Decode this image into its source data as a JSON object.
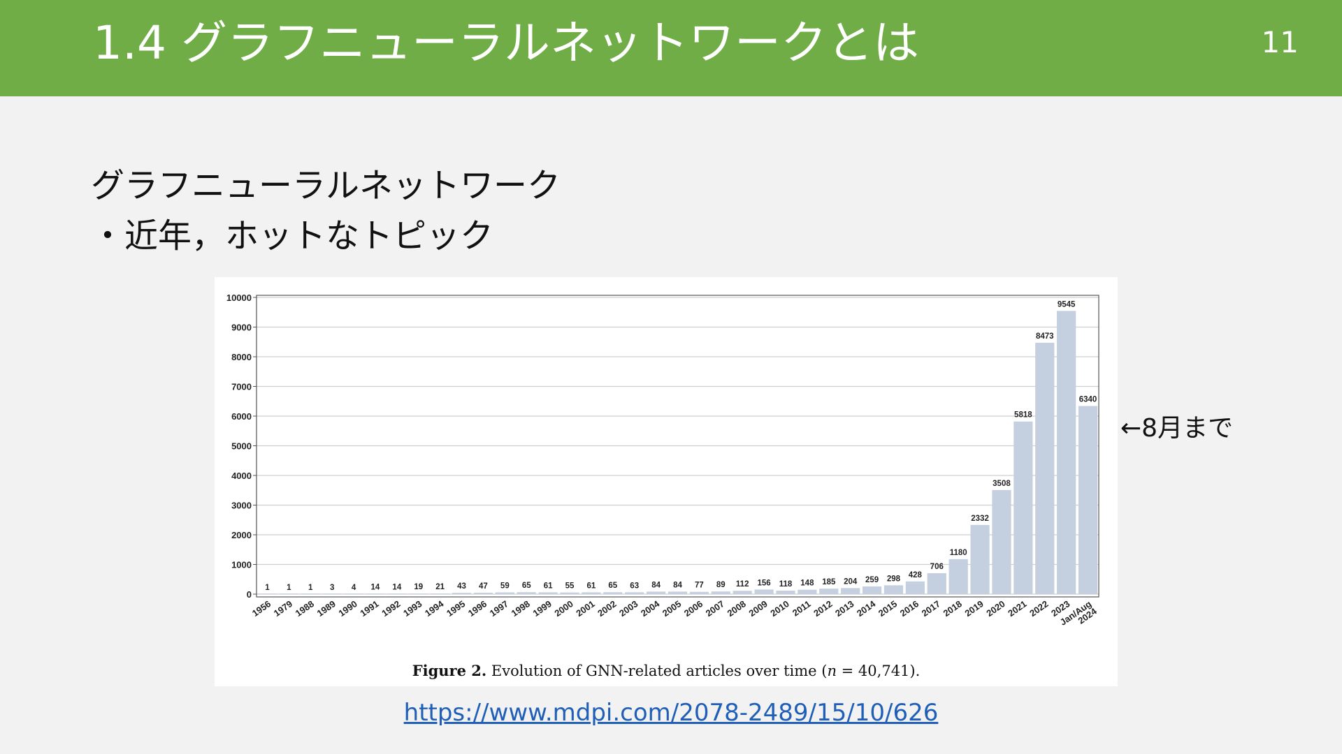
{
  "slide": {
    "title": "1.4 グラフニューラルネットワークとは",
    "page_number": "11",
    "heading": "グラフニューラルネットワーク",
    "bullet": "・近年，ホットなトピック",
    "note": "←8月まで",
    "link": "https://www.mdpi.com/2078-2489/15/10/626"
  },
  "colors": {
    "header": "#70ad47",
    "bar": "#c4d0df",
    "link": "#1f5fb8"
  },
  "chart_data": {
    "type": "bar",
    "categories": [
      "1956",
      "1979",
      "1988",
      "1989",
      "1990",
      "1991",
      "1992",
      "1993",
      "1994",
      "1995",
      "1996",
      "1997",
      "1998",
      "1999",
      "2000",
      "2001",
      "2002",
      "2003",
      "2004",
      "2005",
      "2006",
      "2007",
      "2008",
      "2009",
      "2010",
      "2011",
      "2012",
      "2013",
      "2014",
      "2015",
      "2016",
      "2017",
      "2018",
      "2019",
      "2020",
      "2021",
      "2022",
      "2023",
      "Jan/Aug 2024"
    ],
    "values": [
      1,
      1,
      1,
      3,
      4,
      14,
      14,
      19,
      21,
      43,
      47,
      59,
      65,
      61,
      55,
      61,
      65,
      63,
      84,
      84,
      77,
      89,
      112,
      156,
      118,
      148,
      185,
      204,
      259,
      298,
      428,
      706,
      1180,
      2332,
      3508,
      5818,
      8473,
      9545,
      6340
    ],
    "yticks": [
      "0",
      "1000",
      "2000",
      "3000",
      "4000",
      "5000",
      "6000",
      "7000",
      "8000",
      "9000",
      "10000"
    ],
    "ylim": [
      0,
      10000
    ],
    "grid": true,
    "caption_label": "Figure 2.",
    "caption_text": "Evolution of GNN-related articles over time (",
    "caption_n": "n",
    "caption_tail": " = 40,741)."
  }
}
